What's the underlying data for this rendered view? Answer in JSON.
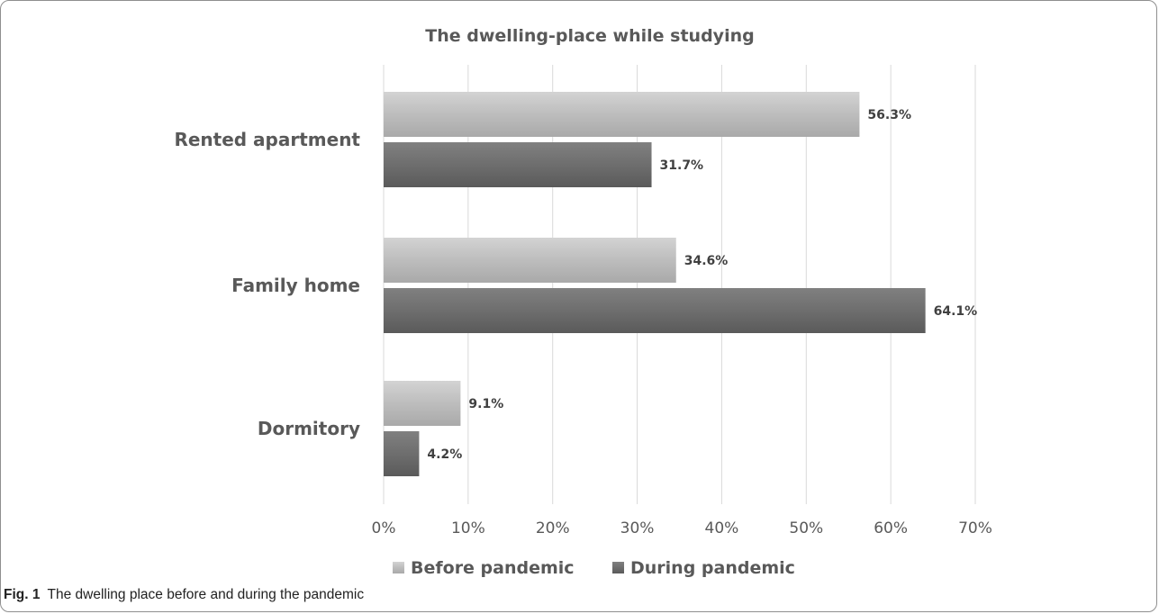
{
  "chart_data": {
    "type": "bar",
    "orientation": "horizontal",
    "title": "The dwelling-place while studying",
    "categories": [
      "Rented apartment",
      "Family home",
      "Dormitory"
    ],
    "series": [
      {
        "name": "Before pandemic",
        "values": [
          56.3,
          34.6,
          9.1
        ],
        "labels": [
          "56.3%",
          "34.6%",
          "9.1%"
        ],
        "color": "#bfbfbf"
      },
      {
        "name": "During pandemic",
        "values": [
          31.7,
          64.1,
          4.2
        ],
        "labels": [
          "31.7%",
          "64.1%",
          "4.2%"
        ],
        "color": "#6e6e6e"
      }
    ],
    "xlim": [
      0,
      70
    ],
    "xticks": [
      0,
      10,
      20,
      30,
      40,
      50,
      60,
      70
    ],
    "xtick_labels": [
      "0%",
      "10%",
      "20%",
      "30%",
      "40%",
      "50%",
      "60%",
      "70%"
    ],
    "grid": "vertical",
    "legend_position": "bottom"
  },
  "caption": {
    "label": "Fig. 1",
    "text": "The dwelling place before and during the pandemic"
  }
}
